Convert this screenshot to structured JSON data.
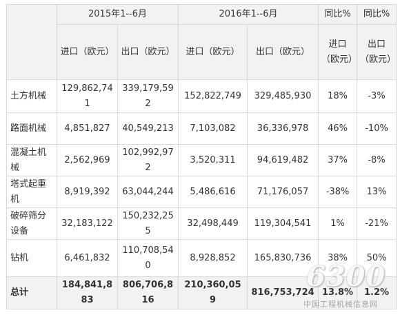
{
  "header": {
    "period_2015": "2015年1--6月",
    "period_2016": "2016年1--6月",
    "yoy_import": "同比%",
    "yoy_export": "同比%",
    "import": "进口（欧元）",
    "export": "出口（欧元）",
    "import_2016": "进口（欧元）",
    "export_2016": "出口（欧元）",
    "yoy_import_unit": "进口（欧元）",
    "yoy_export_unit": "出口（欧元）"
  },
  "rows": [
    {
      "name": "土方机械",
      "imp2015": "129,862,741",
      "exp2015": "339,179,592",
      "imp2016": "152,822,749",
      "exp2016": "329,485,930",
      "yoy_imp": "18%",
      "yoy_exp": "-3%"
    },
    {
      "name": "路面机械",
      "imp2015": "4,851,827",
      "exp2015": "40,549,213",
      "imp2016": "7,103,082",
      "exp2016": "36,336,978",
      "yoy_imp": "46%",
      "yoy_exp": "-10%"
    },
    {
      "name": "混凝土机械",
      "imp2015": "2,562,969",
      "exp2015": "102,992,972",
      "imp2016": "3,520,311",
      "exp2016": "94,619,482",
      "yoy_imp": "37%",
      "yoy_exp": "-8%"
    },
    {
      "name": "塔式起重机",
      "imp2015": "8,919,392",
      "exp2015": "63,044,244",
      "imp2016": "5,486,616",
      "exp2016": "71,176,057",
      "yoy_imp": "-38%",
      "yoy_exp": "13%"
    },
    {
      "name": "破碎筛分设备",
      "imp2015": "32,183,122",
      "exp2015": "150,232,255",
      "imp2016": "32,498,449",
      "exp2016": "119,304,541",
      "yoy_imp": "1%",
      "yoy_exp": "-21%"
    },
    {
      "name": "钻机",
      "imp2015": "6,461,832",
      "exp2015": "110,708,540",
      "imp2016": "8,928,852",
      "exp2016": "165,830,736",
      "yoy_imp": "38%",
      "yoy_exp": "50%"
    }
  ],
  "total": {
    "name": "总计",
    "imp2015": "184,841,883",
    "exp2015": "806,706,816",
    "imp2016": "210,360,059",
    "exp2016": "816,753,724",
    "yoy_imp": "13.8%",
    "yoy_exp": "1.2%"
  },
  "watermark": {
    "number": "6300",
    "site": "中国工程机械信息网"
  }
}
